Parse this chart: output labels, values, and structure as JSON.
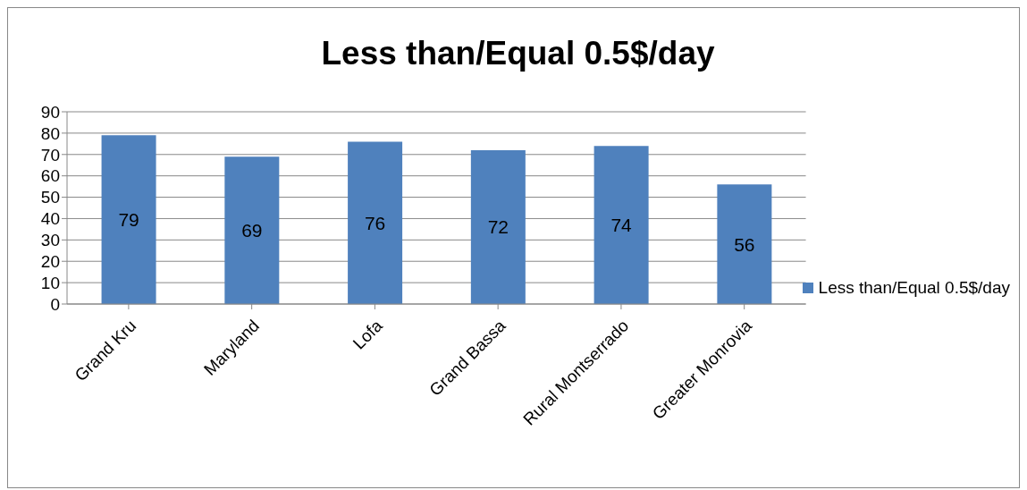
{
  "chart_data": {
    "type": "bar",
    "title": "Less than/Equal 0.5$/day",
    "categories": [
      "Grand Kru",
      "Maryland",
      "Lofa",
      "Grand Bassa",
      "Rural Montserrado",
      "Greater Monrovia"
    ],
    "series": [
      {
        "name": "Less than/Equal 0.5$/day",
        "color": "#4f81bd",
        "values": [
          79,
          69,
          76,
          72,
          74,
          56
        ]
      }
    ],
    "ylim": [
      0,
      90
    ],
    "yticks": [
      0,
      10,
      20,
      30,
      40,
      50,
      60,
      70,
      80,
      90
    ],
    "grid": "y",
    "legend": "right",
    "data_labels": true
  }
}
